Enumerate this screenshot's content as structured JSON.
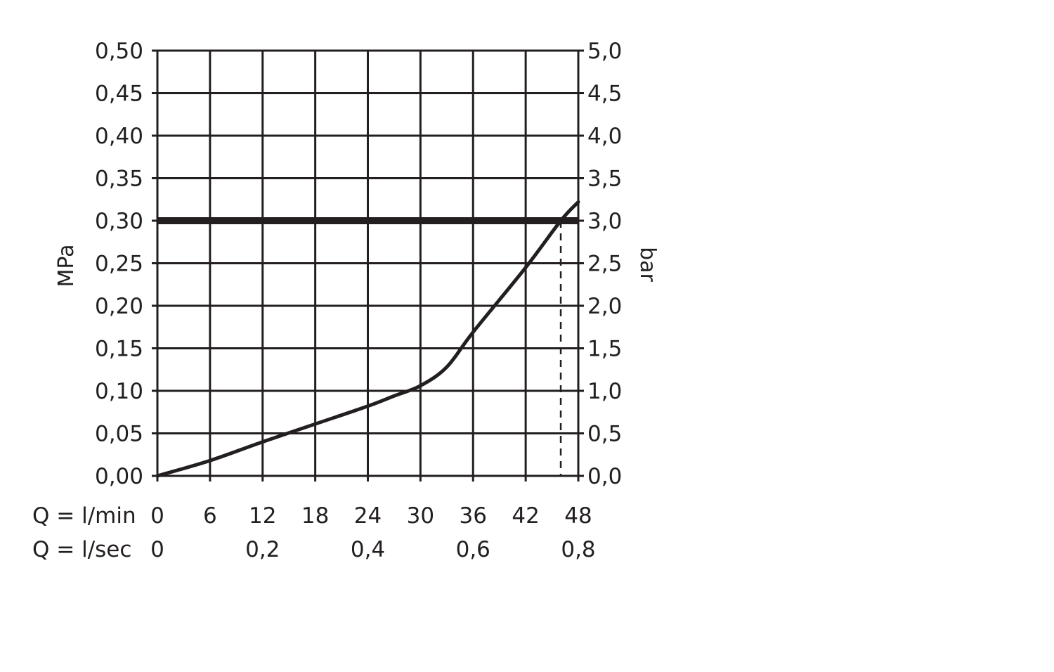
{
  "chart_data": {
    "type": "line",
    "title": "",
    "ylabel": "MPa",
    "y2label": "bar",
    "x_row_labels": [
      "Q = l/min",
      "Q = l/sec"
    ],
    "xlim": [
      0,
      48
    ],
    "ylim": [
      0,
      0.5
    ],
    "y2lim": [
      0,
      5
    ],
    "grid": true,
    "x_ticks": [
      "0",
      "6",
      "12",
      "18",
      "24",
      "30",
      "36",
      "42",
      "48"
    ],
    "x_tick_values": [
      0,
      6,
      12,
      18,
      24,
      30,
      36,
      42,
      48
    ],
    "x2_ticks": [
      "0",
      "0,2",
      "0,4",
      "0,6",
      "0,8"
    ],
    "x2_tick_positions_lmin": [
      0,
      12,
      24,
      36,
      48
    ],
    "y_ticks": [
      "0,00",
      "0,05",
      "0,10",
      "0,15",
      "0,20",
      "0,25",
      "0,30",
      "0,35",
      "0,40",
      "0,45",
      "0,50"
    ],
    "y2_ticks": [
      "0,0",
      "0,5",
      "1,0",
      "1,5",
      "2,0",
      "2,5",
      "3,0",
      "3,5",
      "4,0",
      "4,5",
      "5,0"
    ],
    "series": [
      {
        "x": [
          0,
          6,
          12,
          18,
          24,
          27,
          30,
          33,
          36,
          42,
          46,
          48
        ],
        "y": [
          0,
          0.018,
          0.04,
          0.061,
          0.082,
          0.094,
          0.106,
          0.128,
          0.169,
          0.245,
          0.3,
          0.322
        ]
      }
    ],
    "reference_line": {
      "y": 0.3
    },
    "marker_line": {
      "x": 46,
      "y": 0.3,
      "style": "dashed"
    },
    "colors": {
      "ink": "#231f20"
    }
  }
}
